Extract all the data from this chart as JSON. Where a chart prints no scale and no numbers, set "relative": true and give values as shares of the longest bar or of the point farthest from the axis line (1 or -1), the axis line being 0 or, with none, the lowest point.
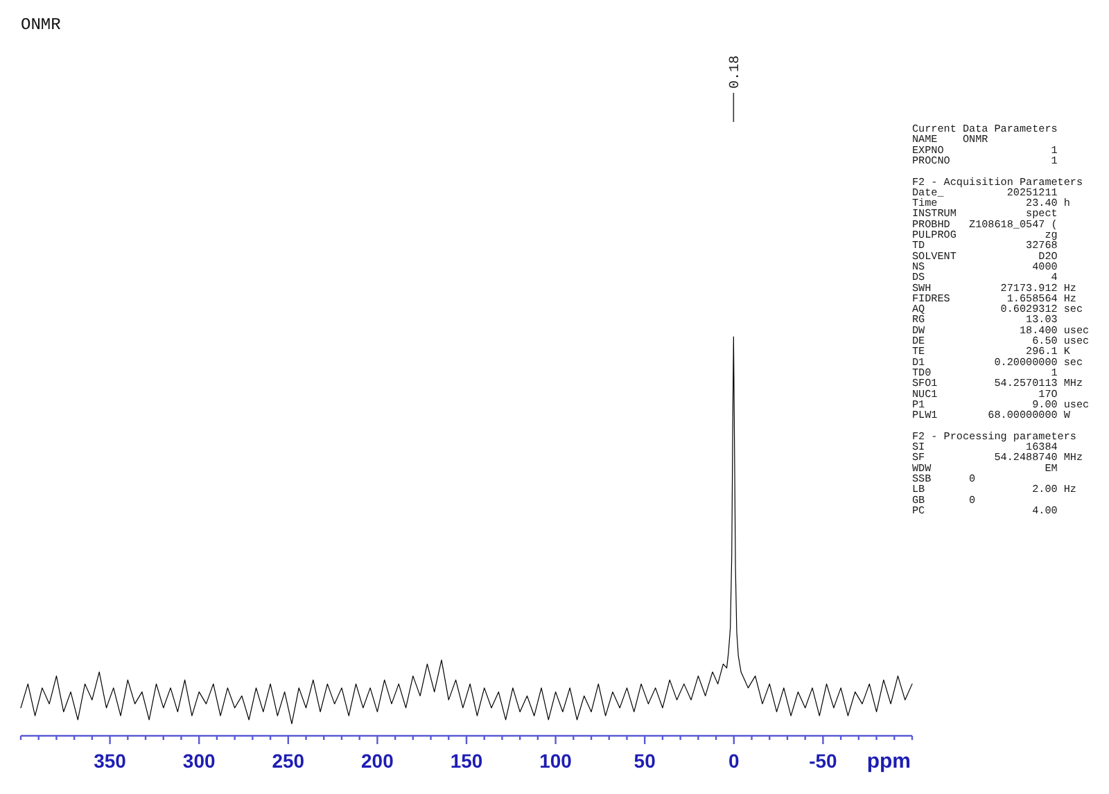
{
  "chart_data": {
    "type": "line",
    "title": "ONMR",
    "xlabel": "ppm",
    "relative": true,
    "color": "#000000",
    "xlim": [
      400,
      -100
    ],
    "xticks": [
      {
        "value": 400,
        "label": null
      },
      {
        "value": 390,
        "label": null
      },
      {
        "value": 380,
        "label": null
      },
      {
        "value": 370,
        "label": null
      },
      {
        "value": 360,
        "label": null
      },
      350,
      {
        "value": 340,
        "label": null
      },
      {
        "value": 330,
        "label": null
      },
      {
        "value": 320,
        "label": null
      },
      {
        "value": 310,
        "label": null
      },
      300,
      {
        "value": 290,
        "label": null
      },
      {
        "value": 280,
        "label": null
      },
      {
        "value": 270,
        "label": null
      },
      {
        "value": 260,
        "label": null
      },
      250,
      {
        "value": 240,
        "label": null
      },
      {
        "value": 230,
        "label": null
      },
      {
        "value": 220,
        "label": null
      },
      {
        "value": 210,
        "label": null
      },
      200,
      {
        "value": 190,
        "label": null
      },
      {
        "value": 180,
        "label": null
      },
      {
        "value": 170,
        "label": null
      },
      {
        "value": 160,
        "label": null
      },
      150,
      {
        "value": 140,
        "label": null
      },
      {
        "value": 130,
        "label": null
      },
      {
        "value": 120,
        "label": null
      },
      {
        "value": 110,
        "label": null
      },
      100,
      {
        "value": 90,
        "label": null
      },
      {
        "value": 80,
        "label": null
      },
      {
        "value": 70,
        "label": null
      },
      {
        "value": 60,
        "label": null
      },
      50,
      {
        "value": 40,
        "label": null
      },
      {
        "value": 30,
        "label": null
      },
      {
        "value": 20,
        "label": null
      },
      {
        "value": 10,
        "label": null
      },
      0,
      {
        "value": -10,
        "label": null
      },
      {
        "value": -20,
        "label": null
      },
      {
        "value": -30,
        "label": null
      },
      {
        "value": -40,
        "label": null
      },
      -50,
      {
        "value": -60,
        "label": null
      },
      {
        "value": -70,
        "label": null
      },
      {
        "value": -80,
        "label": null
      },
      {
        "value": -90,
        "label": null
      },
      {
        "value": -100,
        "label": null
      }
    ],
    "x": [
      400,
      396,
      392,
      388,
      384,
      380,
      376,
      372,
      368,
      364,
      360,
      356,
      352,
      348,
      344,
      340,
      336,
      332,
      328,
      324,
      320,
      316,
      312,
      308,
      304,
      300,
      296,
      292,
      288,
      284,
      280,
      276,
      272,
      268,
      264,
      260,
      256,
      252,
      248,
      244,
      240,
      236,
      232,
      228,
      224,
      220,
      216,
      212,
      208,
      204,
      200,
      196,
      192,
      188,
      184,
      180,
      176,
      172,
      168,
      164,
      160,
      156,
      152,
      148,
      144,
      140,
      136,
      132,
      128,
      124,
      120,
      116,
      112,
      108,
      104,
      100,
      96,
      92,
      88,
      84,
      80,
      76,
      72,
      68,
      64,
      60,
      56,
      52,
      48,
      44,
      40,
      36,
      32,
      28,
      24,
      20,
      16,
      12,
      9,
      6,
      4,
      3,
      2,
      1.2,
      0.6,
      0.18,
      -0.3,
      -0.9,
      -1.6,
      -2.5,
      -4,
      -6,
      -8,
      -12,
      -16,
      -20,
      -24,
      -28,
      -32,
      -36,
      -40,
      -44,
      -48,
      -52,
      -56,
      -60,
      -64,
      -68,
      -72,
      -76,
      -80,
      -84,
      -88,
      -92,
      -96,
      -100
    ],
    "values": [
      0.07,
      0.13,
      0.05,
      0.12,
      0.08,
      0.15,
      0.06,
      0.11,
      0.04,
      0.13,
      0.09,
      0.16,
      0.07,
      0.12,
      0.05,
      0.14,
      0.08,
      0.11,
      0.04,
      0.13,
      0.07,
      0.12,
      0.06,
      0.14,
      0.05,
      0.11,
      0.08,
      0.13,
      0.05,
      0.12,
      0.07,
      0.1,
      0.04,
      0.12,
      0.06,
      0.13,
      0.05,
      0.11,
      0.03,
      0.12,
      0.07,
      0.14,
      0.06,
      0.13,
      0.08,
      0.12,
      0.05,
      0.13,
      0.07,
      0.12,
      0.06,
      0.14,
      0.08,
      0.13,
      0.07,
      0.15,
      0.1,
      0.18,
      0.11,
      0.19,
      0.09,
      0.14,
      0.07,
      0.13,
      0.05,
      0.12,
      0.07,
      0.11,
      0.04,
      0.12,
      0.06,
      0.1,
      0.05,
      0.12,
      0.04,
      0.11,
      0.06,
      0.12,
      0.04,
      0.1,
      0.06,
      0.13,
      0.05,
      0.11,
      0.07,
      0.12,
      0.06,
      0.13,
      0.08,
      0.12,
      0.07,
      0.14,
      0.09,
      0.13,
      0.09,
      0.15,
      0.1,
      0.16,
      0.13,
      0.18,
      0.17,
      0.21,
      0.27,
      0.45,
      0.8,
      1,
      0.75,
      0.42,
      0.26,
      0.2,
      0.16,
      0.14,
      0.12,
      0.15,
      0.08,
      0.13,
      0.06,
      0.12,
      0.05,
      0.11,
      0.07,
      0.12,
      0.05,
      0.13,
      0.07,
      0.12,
      0.05,
      0.11,
      0.08,
      0.13,
      0.06,
      0.14,
      0.08,
      0.15,
      0.09,
      0.13
    ],
    "annotations": [
      {
        "text": "0.18",
        "x": 0.18
      },
      "Current Data Parameters\nNAME    ONMR\nEXPNO                 1\nPROCNO                1",
      "F2 - Acquisition Parameters\nDate_          20251211\nTime              23.40 h\nINSTRUM           spect\nPROBHD   Z108618_0547 (\nPULPROG              zg\nTD                32768\nSOLVENT             D2O\nNS                 4000\nDS                    4\nSWH           27173.912 Hz\nFIDRES         1.658564 Hz\nAQ            0.6029312 sec\nRG                13.03\nDW               18.400 usec\nDE                 6.50 usec\nTE                296.1 K\nD1           0.20000000 sec\nTD0                   1\nSFO1         54.2570113 MHz\nNUC1                17O\nP1                 9.00 usec\nPLW1        68.00000000 W",
      "F2 - Processing parameters\nSI                16384\nSF           54.2488740 MHz\nWDW                  EM\nSSB      0\nLB                 2.00 Hz\nGB       0\nPC                 4.00"
    ]
  }
}
